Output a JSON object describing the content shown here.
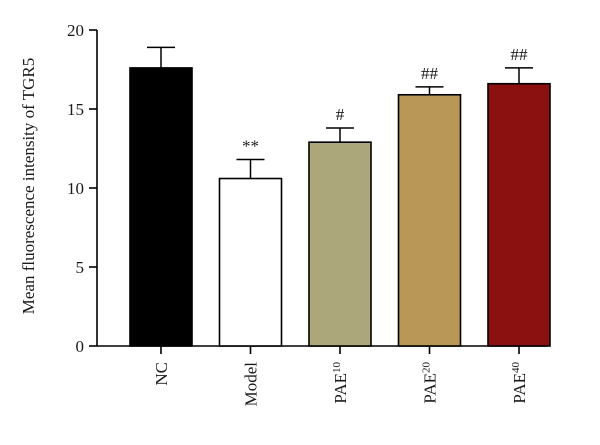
{
  "chart_data": {
    "type": "bar",
    "categories": [
      {
        "base": "NC",
        "sup": ""
      },
      {
        "base": "Model",
        "sup": ""
      },
      {
        "base": "PAE",
        "sup": "10"
      },
      {
        "base": "PAE",
        "sup": "20"
      },
      {
        "base": "PAE",
        "sup": "40"
      }
    ],
    "values": [
      17.6,
      10.6,
      12.9,
      15.9,
      16.6
    ],
    "errors": [
      1.3,
      1.2,
      0.9,
      0.5,
      1.0
    ],
    "annotations": [
      "",
      "**",
      "#",
      "##",
      "##"
    ],
    "colors": [
      "#000000",
      "#ffffff",
      "#aca77a",
      "#b99757",
      "#8b1111"
    ],
    "xlabel": "",
    "ylabel": "Mean fluorescence intensity of TGR5",
    "ylim": [
      0,
      20
    ],
    "yticks": [
      0,
      5,
      10,
      15,
      20
    ],
    "grid": false,
    "legend": "none"
  }
}
